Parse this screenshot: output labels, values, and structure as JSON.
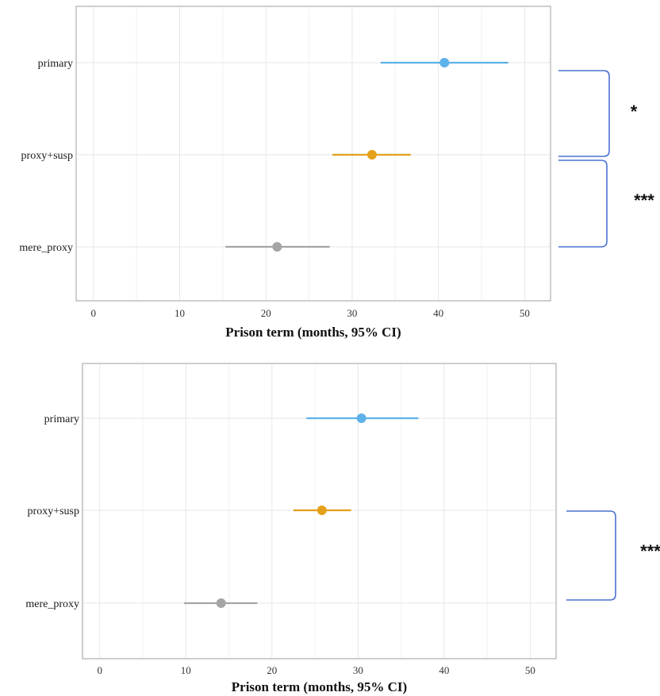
{
  "chart_data": [
    {
      "type": "forest",
      "title": "",
      "xlabel": "Prison term (months, 95% CI)",
      "ylabel": "",
      "xlim": [
        -2,
        53
      ],
      "xticks": [
        0,
        10,
        20,
        30,
        40,
        50
      ],
      "grid": true,
      "categories": [
        "primary",
        "proxy+susp",
        "mere_proxy"
      ],
      "estimates": [
        40.7,
        32.3,
        21.3
      ],
      "ci_low": [
        33.3,
        27.7,
        15.3
      ],
      "ci_high": [
        48.1,
        36.8,
        27.4
      ],
      "colors": [
        "#5eb2ea",
        "#e5a01a",
        "#a5a5a5"
      ],
      "significance": [
        {
          "from": "primary",
          "to": "proxy+susp",
          "label": "*"
        },
        {
          "from": "proxy+susp",
          "to": "mere_proxy",
          "label": "***"
        }
      ]
    },
    {
      "type": "forest",
      "title": "",
      "xlabel": "Prison term (months, 95% CI)",
      "ylabel": "",
      "xlim": [
        -2,
        53
      ],
      "xticks": [
        0,
        10,
        20,
        30,
        40,
        50
      ],
      "grid": true,
      "categories": [
        "primary",
        "proxy+susp",
        "mere_proxy"
      ],
      "estimates": [
        30.4,
        25.8,
        14.1
      ],
      "ci_low": [
        24.0,
        22.5,
        9.8
      ],
      "ci_high": [
        37.0,
        29.2,
        18.3
      ],
      "colors": [
        "#5eb2ea",
        "#e5a01a",
        "#a5a5a5"
      ],
      "significance": [
        {
          "from": "proxy+susp",
          "to": "mere_proxy",
          "label": "***"
        }
      ]
    }
  ]
}
